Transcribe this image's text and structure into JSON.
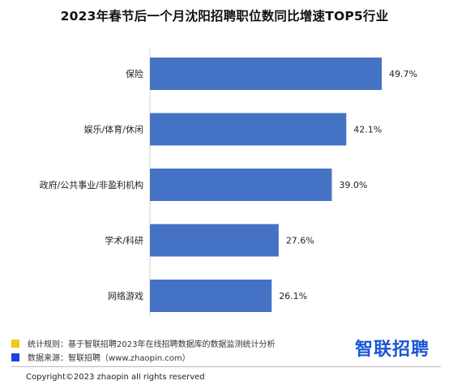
{
  "chart_data": {
    "type": "bar",
    "orientation": "horizontal",
    "title": "2023年春节后一个月沈阳招聘职位数同比增速TOP5行业",
    "categories": [
      "保险",
      "娱乐/体育/休闲",
      "政府/公共事业/非盈利机构",
      "学术/科研",
      "网络游戏"
    ],
    "values": [
      49.7,
      42.1,
      39.0,
      27.6,
      26.1
    ],
    "value_labels": [
      "49.7%",
      "42.1%",
      "39.0%",
      "27.6%",
      "26.1%"
    ],
    "xlim": [
      0,
      49.7
    ],
    "grid": false,
    "bar_color": "#4472c4"
  },
  "footer": {
    "rule_text": "统计规则：基于智联招聘2023年在线招聘数据库的数据监测统计分析",
    "rule_color": "#f5c518",
    "source_text": "数据来源：智联招聘（www.zhaopin.com）",
    "source_color": "#1f3fe0",
    "logo_text": "智联招聘",
    "copyright": "Copyright©2023 zhaopin all rights reserved"
  }
}
